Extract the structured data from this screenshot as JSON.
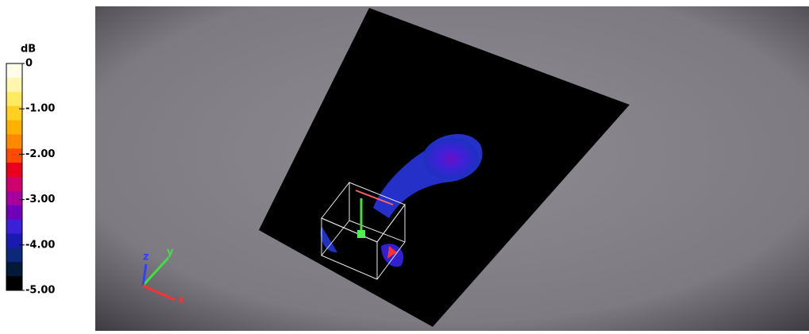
{
  "colorbar": {
    "title": "dB",
    "range": [
      -5,
      0
    ],
    "ticks": [
      {
        "value": 0,
        "label": "0"
      },
      {
        "value": -1,
        "label": "-1.00"
      },
      {
        "value": -2,
        "label": "-2.00"
      },
      {
        "value": -3,
        "label": "-3.00"
      },
      {
        "value": -4,
        "label": "-4.00"
      },
      {
        "value": -5,
        "label": "-5.00"
      }
    ],
    "colors": [
      "#fffde8",
      "#fff7b0",
      "#ffea60",
      "#ffd020",
      "#ffb000",
      "#ff8a00",
      "#ff4a00",
      "#e8001c",
      "#d0006e",
      "#a8009c",
      "#7000b8",
      "#3c20d8",
      "#1a1ab0",
      "#0c2878",
      "#041838",
      "#000000"
    ]
  },
  "axes_triad": {
    "x": "x",
    "y": "y",
    "z": "z"
  }
}
